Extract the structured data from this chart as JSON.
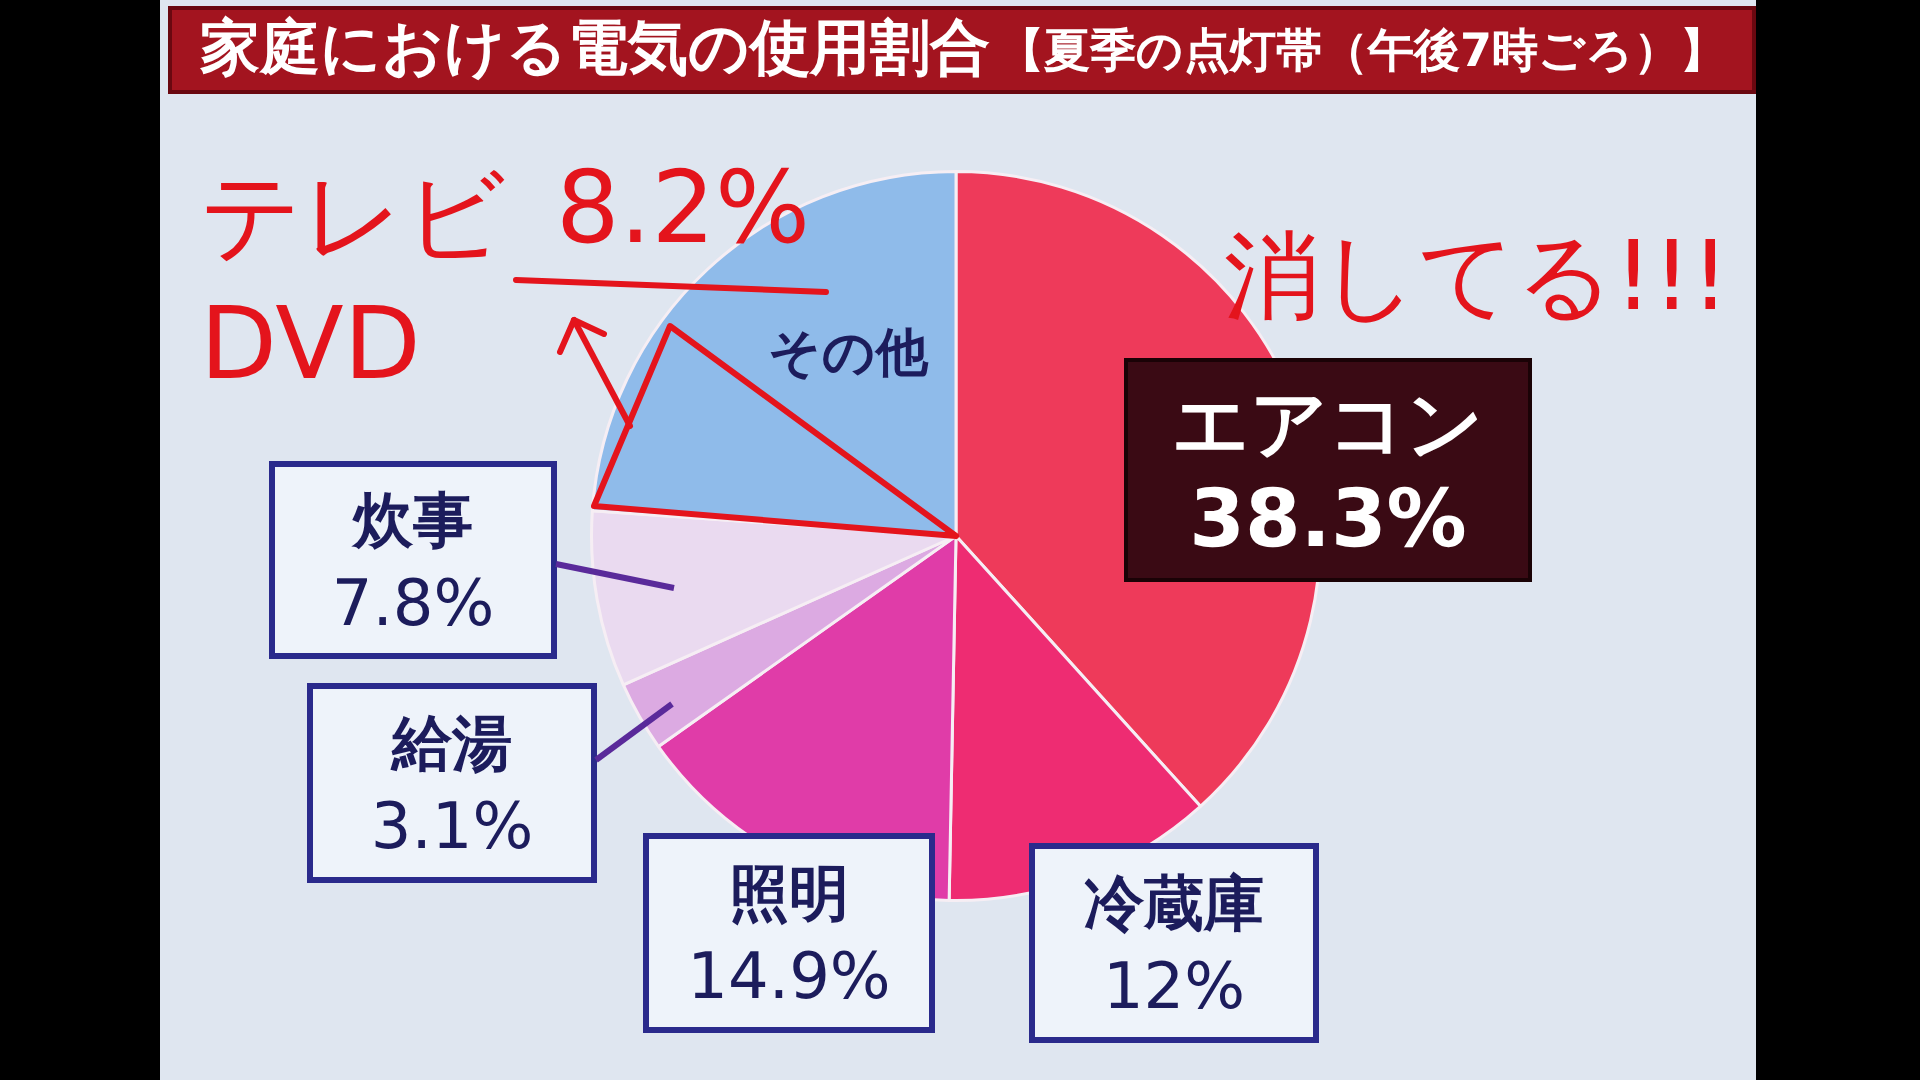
{
  "chart_data": {
    "type": "pie",
    "title": "家庭における電気の使用割合",
    "subtitle": "【夏季の点灯帯（午後7時ごろ）】",
    "categories": [
      "エアコン",
      "冷蔵庫",
      "照明",
      "給湯",
      "炊事",
      "その他"
    ],
    "values": [
      38.3,
      12,
      14.9,
      3.1,
      7.8,
      23.9
    ],
    "colors": [
      "#ee3a5a",
      "#ee2c72",
      "#e03ca8",
      "#dcaae2",
      "#eadaf0",
      "#8fbbea"
    ],
    "value_labels": [
      "38.3%",
      "12%",
      "14.9%",
      "3.1%",
      "7.8%",
      null
    ],
    "annotations": [
      "テレビ",
      "8.2%",
      "DVD",
      "消してる!!!"
    ],
    "legend": false
  }
}
